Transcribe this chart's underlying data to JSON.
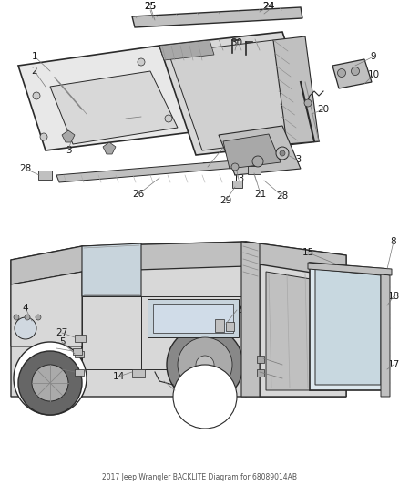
{
  "title": "2017 Jeep Wrangler BACKLITE Diagram for 68089014AB",
  "bg_color": "#ffffff",
  "lc": "#2a2a2a",
  "fig_width": 4.38,
  "fig_height": 5.33,
  "dpi": 100
}
